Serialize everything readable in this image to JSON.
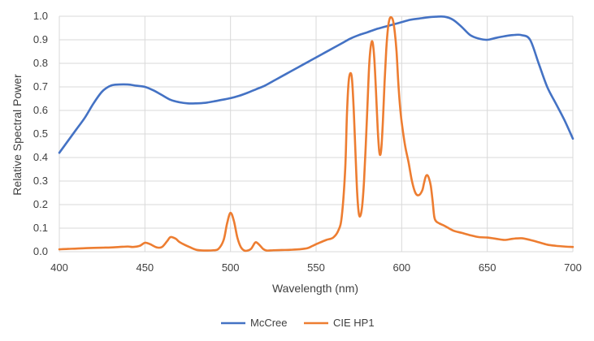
{
  "chart_data": {
    "type": "line",
    "xlabel": "Wavelength (nm)",
    "ylabel": "Relative Spectral Power",
    "xlim": [
      400,
      700
    ],
    "ylim": [
      0,
      1.0
    ],
    "x_ticks": [
      400,
      450,
      500,
      550,
      600,
      650,
      700
    ],
    "y_ticks": [
      0.0,
      0.1,
      0.2,
      0.3,
      0.4,
      0.5,
      0.6,
      0.7,
      0.8,
      0.9,
      1.0
    ],
    "x_tick_labels": [
      "400",
      "450",
      "500",
      "550",
      "600",
      "650",
      "700"
    ],
    "y_tick_labels": [
      "0.0",
      "0.1",
      "0.2",
      "0.3",
      "0.4",
      "0.5",
      "0.6",
      "0.7",
      "0.8",
      "0.9",
      "1.0"
    ],
    "grid": "vertical and horizontal",
    "legend_position": "bottom",
    "series": [
      {
        "name": "McCree",
        "color": "#4472c4",
        "x": [
          400,
          405,
          410,
          415,
          420,
          425,
          430,
          435,
          440,
          445,
          450,
          455,
          460,
          465,
          470,
          475,
          480,
          485,
          490,
          495,
          500,
          505,
          510,
          515,
          520,
          525,
          530,
          535,
          540,
          545,
          550,
          555,
          560,
          565,
          570,
          575,
          580,
          585,
          590,
          595,
          600,
          605,
          610,
          615,
          620,
          625,
          630,
          635,
          640,
          645,
          650,
          655,
          660,
          665,
          670,
          675,
          680,
          685,
          690,
          695,
          700
        ],
        "y": [
          0.42,
          0.47,
          0.52,
          0.57,
          0.63,
          0.68,
          0.705,
          0.71,
          0.71,
          0.705,
          0.7,
          0.685,
          0.665,
          0.645,
          0.635,
          0.63,
          0.63,
          0.632,
          0.638,
          0.645,
          0.652,
          0.662,
          0.675,
          0.69,
          0.705,
          0.725,
          0.745,
          0.765,
          0.785,
          0.805,
          0.825,
          0.845,
          0.865,
          0.885,
          0.905,
          0.92,
          0.932,
          0.945,
          0.955,
          0.965,
          0.975,
          0.985,
          0.99,
          0.995,
          0.998,
          0.998,
          0.985,
          0.955,
          0.92,
          0.905,
          0.9,
          0.908,
          0.915,
          0.92,
          0.92,
          0.9,
          0.8,
          0.7,
          0.63,
          0.56,
          0.48
        ]
      },
      {
        "name": "CIE HP1",
        "color": "#ed7d31",
        "x": [
          400,
          405,
          410,
          415,
          420,
          425,
          430,
          435,
          440,
          443,
          447,
          450,
          453,
          457,
          460,
          463,
          465,
          468,
          470,
          473,
          476,
          480,
          485,
          490,
          493,
          496,
          498,
          500,
          502,
          504,
          506,
          508,
          510,
          512,
          514,
          515,
          517,
          519,
          521,
          525,
          530,
          535,
          540,
          545,
          548,
          552,
          556,
          560,
          563,
          565,
          567,
          568,
          569,
          570,
          571,
          572,
          573,
          574,
          575,
          576,
          577,
          578,
          579,
          580,
          581,
          582,
          583,
          584,
          585,
          586,
          587,
          588,
          589,
          590,
          591,
          592,
          593,
          594,
          595,
          596,
          597,
          598,
          599,
          600,
          602,
          604,
          606,
          608,
          610,
          612,
          613,
          614,
          615,
          616,
          617,
          618,
          619,
          620,
          622,
          625,
          630,
          635,
          640,
          645,
          650,
          655,
          660,
          665,
          670,
          675,
          680,
          685,
          690,
          695,
          700
        ],
        "y": [
          0.01,
          0.012,
          0.013,
          0.015,
          0.016,
          0.017,
          0.018,
          0.02,
          0.022,
          0.02,
          0.025,
          0.038,
          0.032,
          0.018,
          0.02,
          0.045,
          0.062,
          0.055,
          0.042,
          0.03,
          0.02,
          0.008,
          0.005,
          0.006,
          0.012,
          0.05,
          0.12,
          0.165,
          0.13,
          0.06,
          0.02,
          0.005,
          0.005,
          0.012,
          0.035,
          0.04,
          0.028,
          0.012,
          0.005,
          0.006,
          0.007,
          0.008,
          0.01,
          0.015,
          0.025,
          0.038,
          0.05,
          0.06,
          0.09,
          0.15,
          0.35,
          0.58,
          0.72,
          0.758,
          0.73,
          0.6,
          0.42,
          0.25,
          0.16,
          0.155,
          0.2,
          0.3,
          0.45,
          0.62,
          0.79,
          0.875,
          0.89,
          0.82,
          0.68,
          0.52,
          0.42,
          0.43,
          0.55,
          0.72,
          0.86,
          0.95,
          0.99,
          0.995,
          0.98,
          0.93,
          0.85,
          0.72,
          0.62,
          0.55,
          0.45,
          0.38,
          0.3,
          0.25,
          0.24,
          0.26,
          0.29,
          0.318,
          0.325,
          0.31,
          0.28,
          0.22,
          0.15,
          0.13,
          0.12,
          0.11,
          0.09,
          0.08,
          0.07,
          0.062,
          0.06,
          0.055,
          0.05,
          0.055,
          0.057,
          0.05,
          0.04,
          0.03,
          0.025,
          0.022,
          0.02
        ]
      }
    ]
  }
}
